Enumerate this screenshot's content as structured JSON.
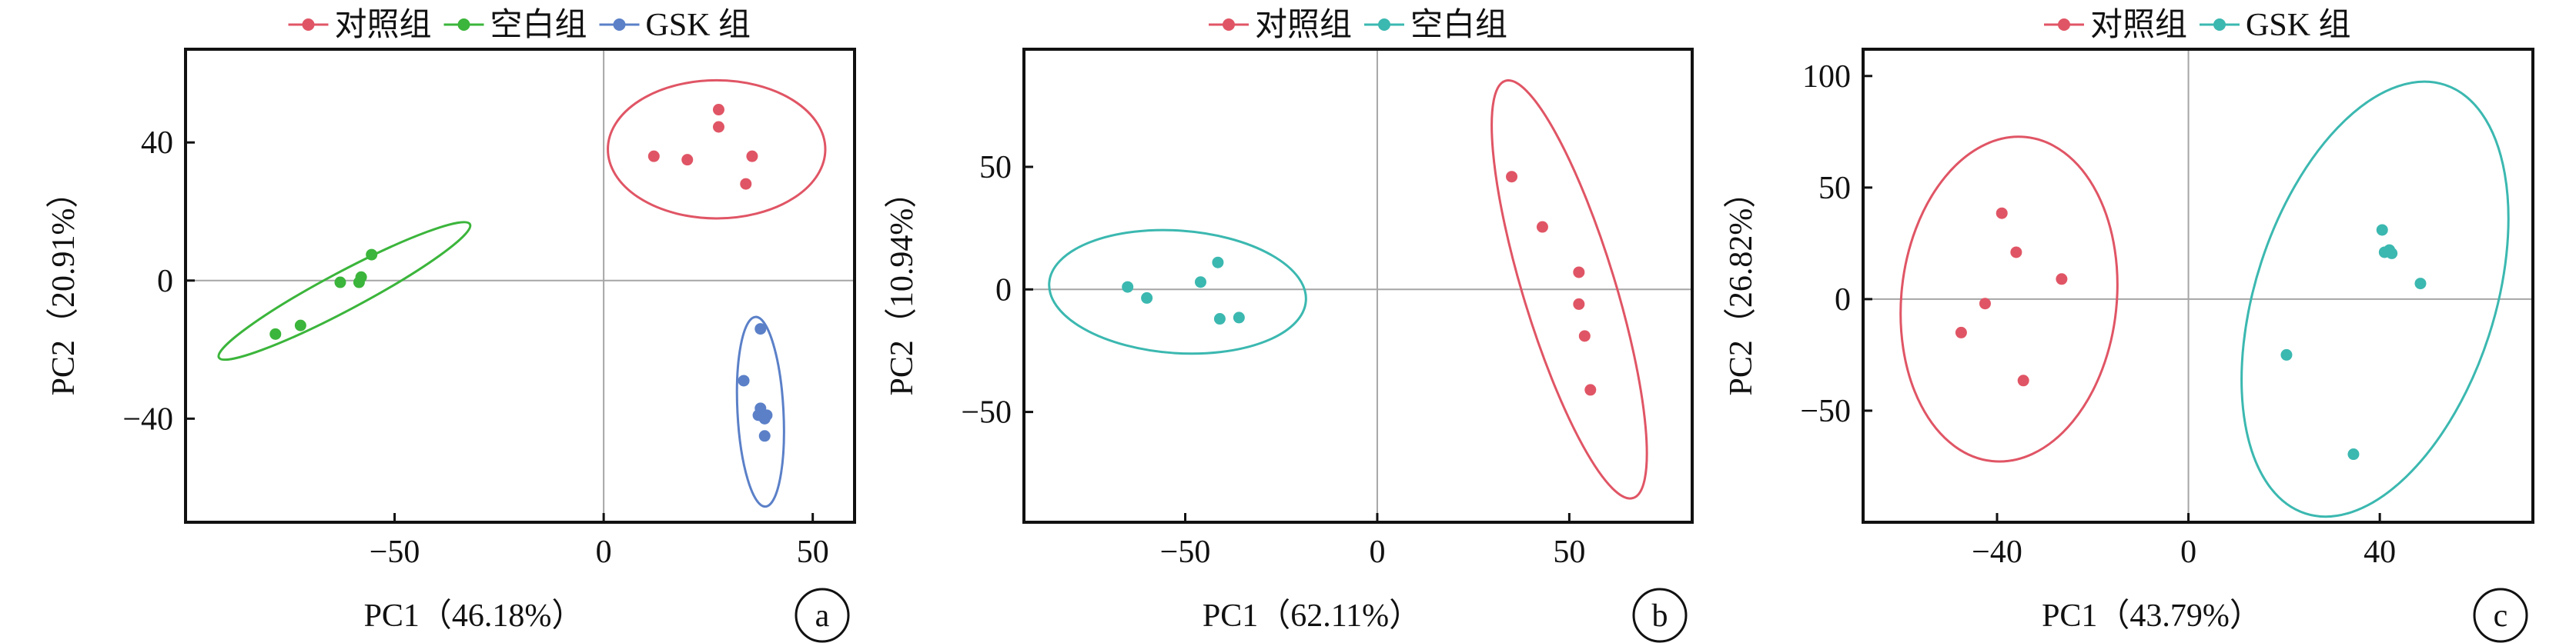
{
  "colors": {
    "control": "#e05565",
    "blank": "#3bb53b",
    "gsk": "#5b80c8",
    "teal": "#3bb8b0",
    "axis": "#111111",
    "zeroline": "#a6a6a6"
  },
  "chart_data": [
    {
      "type": "scatter",
      "panel_label": "a",
      "xlabel": "PC1（46.18%）",
      "ylabel": "PC2（20.91%）",
      "xlim": [
        -100,
        60
      ],
      "ylim": [
        -70,
        67
      ],
      "xticks": [
        -50,
        0,
        50
      ],
      "xtick_labels": [
        "−50",
        "0",
        "50"
      ],
      "yticks": [
        -40,
        0,
        40
      ],
      "ytick_labels": [
        "−40",
        "0",
        "40"
      ],
      "legend_position": "top",
      "series": [
        {
          "name": "对照组",
          "color": "#e05565",
          "x": [
            12,
            20,
            27.5,
            27.5,
            34,
            35.5
          ],
          "y": [
            36,
            35,
            49.5,
            44.5,
            28,
            36
          ],
          "ellipse": {
            "cx": 27,
            "cy": 38,
            "rx": 26,
            "ry": 20,
            "angle": 0
          }
        },
        {
          "name": "空白组",
          "color": "#3bb53b",
          "x": [
            -78.5,
            -72.5,
            -63,
            -58.5,
            -58,
            -55.5
          ],
          "y": [
            -15.5,
            -13,
            -0.5,
            -0.5,
            1,
            7.5
          ],
          "ellipse": {
            "cx": -62,
            "cy": -3,
            "rx": 34,
            "ry": 5.5,
            "angle": -28
          }
        },
        {
          "name": "GSK 组",
          "color": "#5b80c8",
          "x": [
            33.5,
            37.5,
            37.5,
            37,
            38.5,
            39,
            38.5
          ],
          "y": [
            -29,
            -14,
            -37,
            -39,
            -40,
            -39,
            -45
          ],
          "ellipse": {
            "cx": 37.5,
            "cy": -38,
            "rx": 5.5,
            "ry": 27.5,
            "angle": -3
          }
        }
      ]
    },
    {
      "type": "scatter",
      "panel_label": "b",
      "xlabel": "PC1（62.11%）",
      "ylabel": "PC2（10.94%）",
      "xlim": [
        -92,
        82
      ],
      "ylim": [
        -95,
        98
      ],
      "xticks": [
        -50,
        0,
        50
      ],
      "xtick_labels": [
        "−50",
        "0",
        "50"
      ],
      "yticks": [
        -50,
        0,
        50
      ],
      "ytick_labels": [
        "−50",
        "0",
        "50"
      ],
      "legend_position": "top",
      "series": [
        {
          "name": "对照组",
          "color": "#e05565",
          "x": [
            35,
            43,
            52.5,
            52.5,
            54,
            55.5
          ],
          "y": [
            46,
            25.5,
            7,
            -6,
            -19,
            -41
          ],
          "ellipse": {
            "cx": 50,
            "cy": 0,
            "rx": 12,
            "ry": 89,
            "angle": -17
          }
        },
        {
          "name": "空白组",
          "color": "#3bb8b0",
          "x": [
            -65,
            -60,
            -46,
            -41.5,
            -41,
            -36
          ],
          "y": [
            1,
            -3.5,
            3,
            11,
            -12,
            -11.5
          ],
          "ellipse": {
            "cx": -52,
            "cy": -1,
            "rx": 33.5,
            "ry": 25,
            "angle": 4
          }
        }
      ]
    },
    {
      "type": "scatter",
      "panel_label": "c",
      "xlabel": "PC1（43.79%）",
      "ylabel": "PC2（26.82%）",
      "xlim": [
        -68,
        72
      ],
      "ylim": [
        -100,
        112
      ],
      "xticks": [
        -40,
        0,
        40
      ],
      "xtick_labels": [
        "−40",
        "0",
        "40"
      ],
      "yticks": [
        -50,
        0,
        50,
        100
      ],
      "ytick_labels": [
        "−50",
        "0",
        "50",
        "100"
      ],
      "legend_position": "top",
      "series": [
        {
          "name": "对照组",
          "color": "#e05565",
          "x": [
            -47.5,
            -42.5,
            -39,
            -36,
            -34.5,
            -26.5
          ],
          "y": [
            -15,
            -2,
            38.5,
            21,
            -36.5,
            9
          ],
          "ellipse": {
            "cx": -37.5,
            "cy": 0,
            "rx": 22.5,
            "ry": 73,
            "angle": 6
          }
        },
        {
          "name": "GSK 组",
          "color": "#3bb8b0",
          "x": [
            20.5,
            34.5,
            40.5,
            41,
            42,
            42.5,
            48.5
          ],
          "y": [
            -25,
            -69.5,
            31,
            21,
            22,
            20.5,
            7
          ],
          "ellipse": {
            "cx": 39,
            "cy": 0,
            "rx": 25,
            "ry": 101,
            "angle": 18
          }
        }
      ]
    }
  ]
}
